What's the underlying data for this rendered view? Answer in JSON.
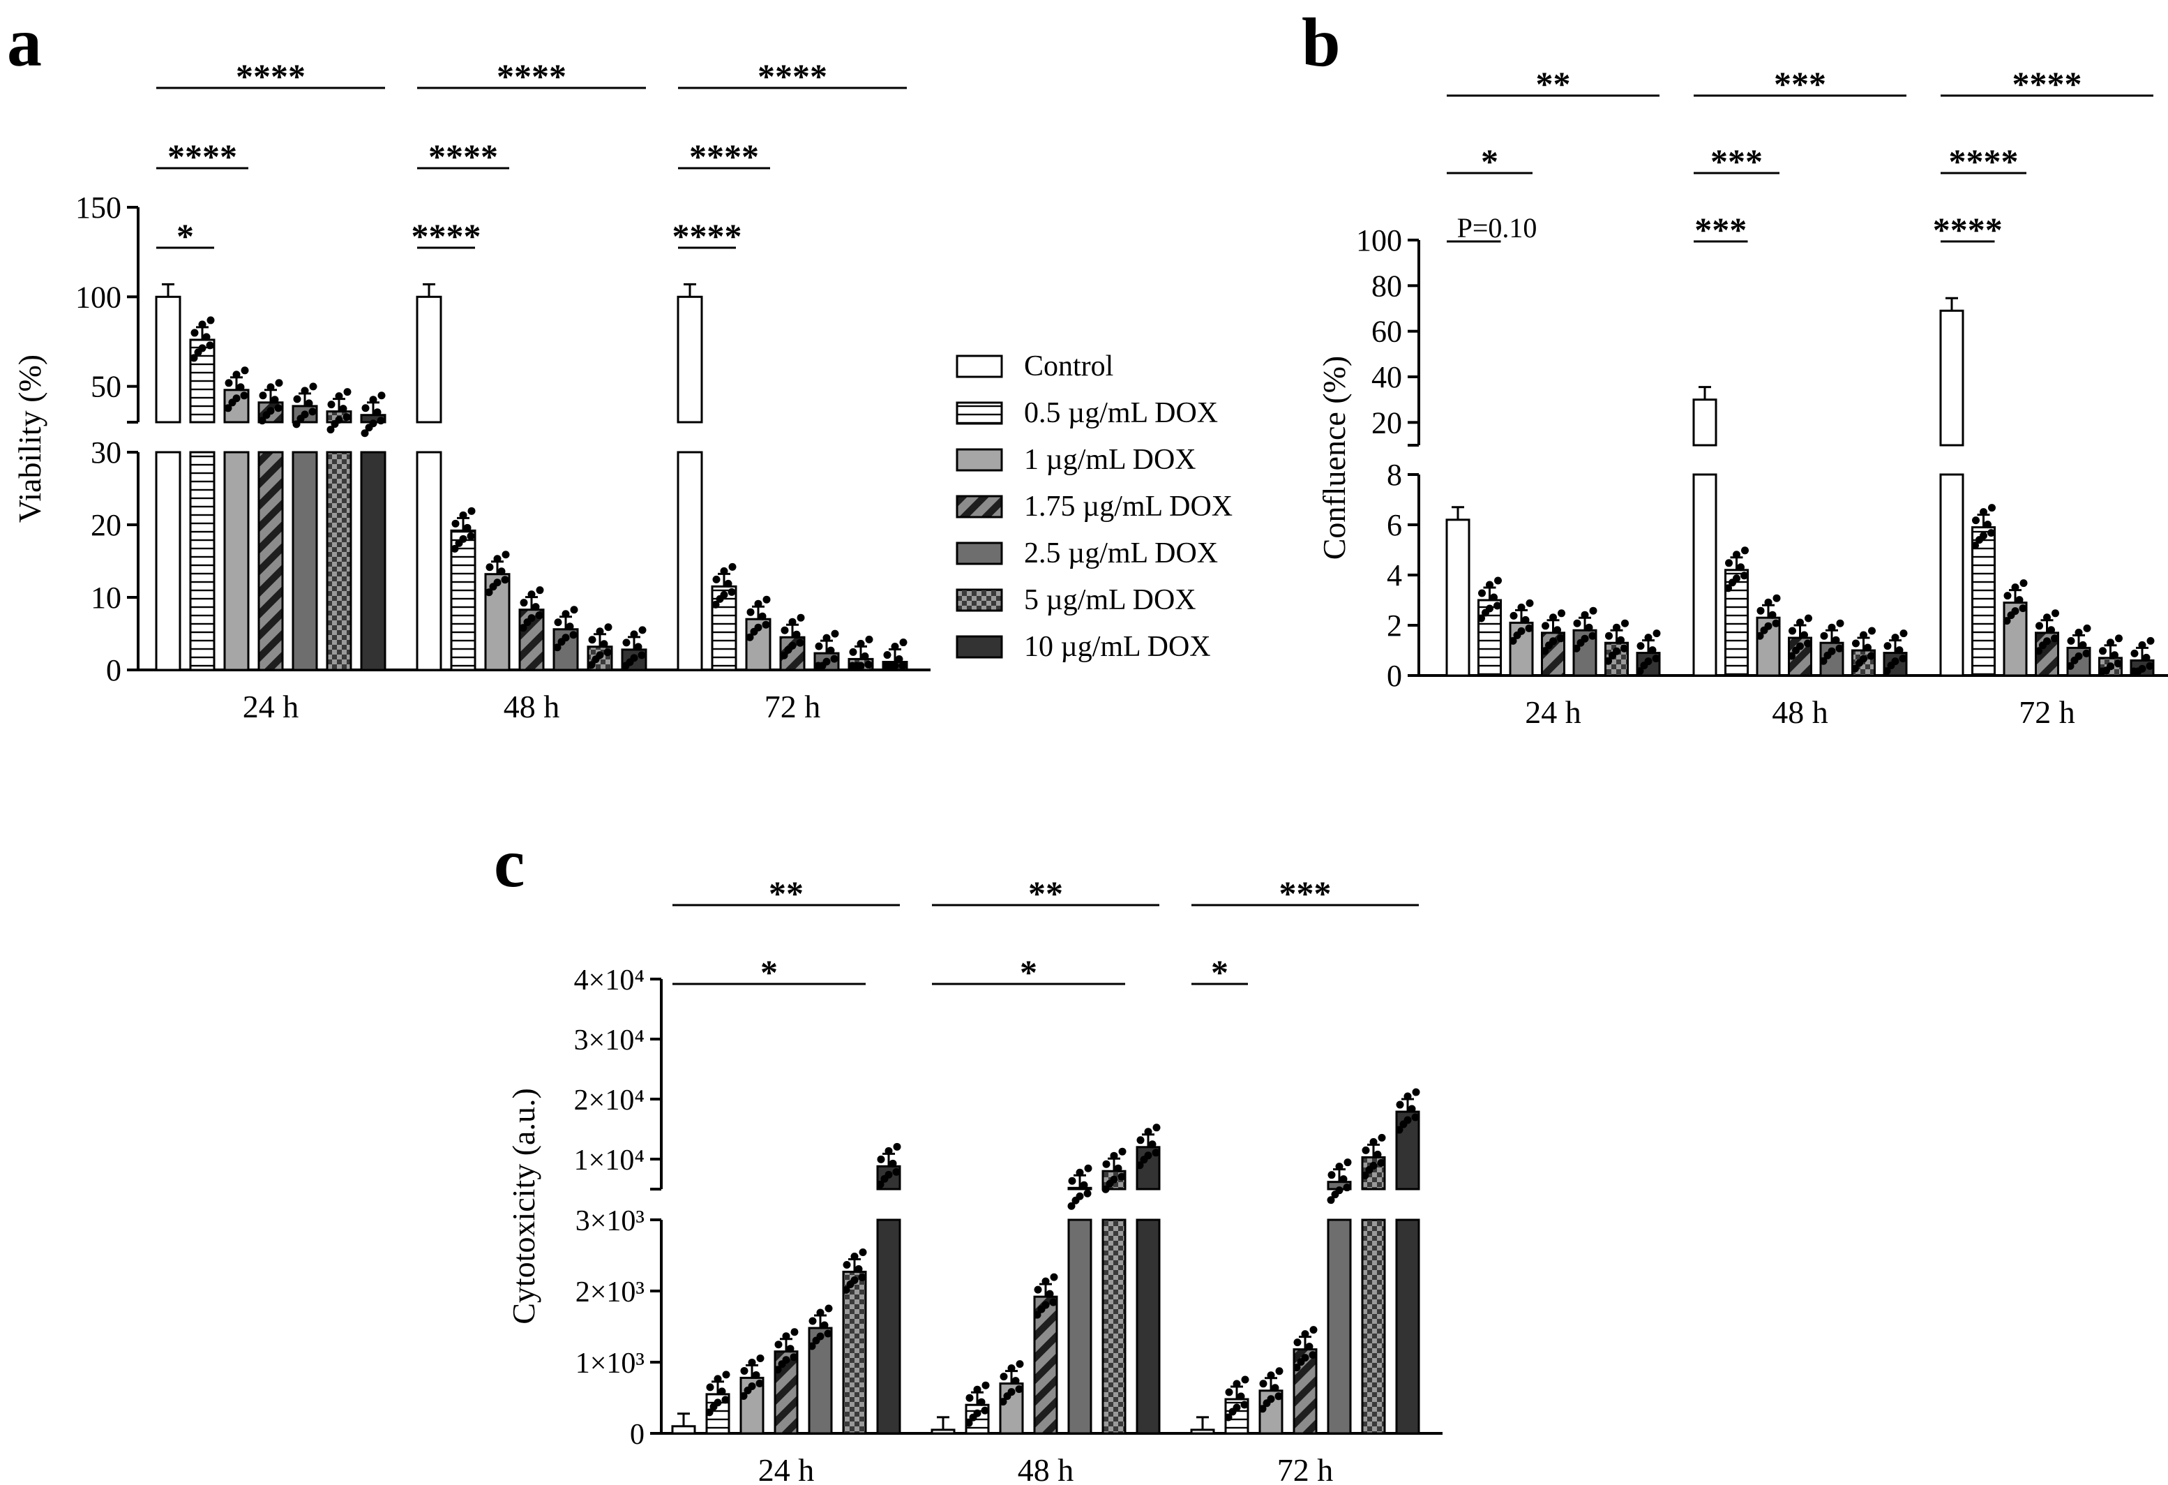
{
  "figure": {
    "legend": {
      "entries": [
        {
          "label": "Control",
          "pattern": "control"
        },
        {
          "label": "0.5 µg/mL DOX",
          "pattern": "hlines"
        },
        {
          "label": "1 µg/mL DOX",
          "pattern": "gray"
        },
        {
          "label": "1.75 µg/mL DOX",
          "pattern": "diag"
        },
        {
          "label": "2.5 µg/mL DOX",
          "pattern": "darkgray"
        },
        {
          "label": "5 µg/mL DOX",
          "pattern": "checker"
        },
        {
          "label": "10 µg/mL DOX",
          "pattern": "black"
        }
      ]
    },
    "colors": {
      "control": "#ffffff",
      "gray": "#a6a6a6",
      "darkgray": "#6e6e6e",
      "black": "#333333",
      "stroke": "#000000"
    }
  },
  "chart_data": [
    {
      "panel": "a",
      "type": "bar",
      "ylabel": "Viability (%)",
      "categories": [
        "24 h",
        "48 h",
        "72 h"
      ],
      "axis_break": {
        "lower": [
          0,
          30
        ],
        "upper": [
          30,
          150
        ]
      },
      "lower_ticks": [
        "0",
        "10",
        "20",
        "30"
      ],
      "upper_ticks": [
        "50",
        "100",
        "150"
      ],
      "series": [
        {
          "name": "Control",
          "values": [
            100,
            100,
            100
          ]
        },
        {
          "name": "0.5 µg/mL DOX",
          "values": [
            76,
            19.2,
            11.5
          ]
        },
        {
          "name": "1 µg/mL DOX",
          "values": [
            48,
            13.2,
            7
          ]
        },
        {
          "name": "1.75 µg/mL DOX",
          "values": [
            41,
            8.3,
            4.5
          ]
        },
        {
          "name": "2.5 µg/mL DOX",
          "values": [
            39,
            5.6,
            2.3
          ]
        },
        {
          "name": "5 µg/mL DOX",
          "values": [
            36,
            3.2,
            1.5
          ]
        },
        {
          "name": "10 µg/mL DOX",
          "values": [
            34,
            2.8,
            1.1
          ]
        }
      ],
      "significance": [
        {
          "group": 0,
          "to": 6,
          "label": "****"
        },
        {
          "group": 0,
          "to": 2,
          "label": "****"
        },
        {
          "group": 0,
          "to": 1,
          "label": "*"
        },
        {
          "group": 1,
          "to": 6,
          "label": "****"
        },
        {
          "group": 1,
          "to": 2,
          "label": "****"
        },
        {
          "group": 1,
          "to": 1,
          "label": "****"
        },
        {
          "group": 2,
          "to": 6,
          "label": "****"
        },
        {
          "group": 2,
          "to": 2,
          "label": "****"
        },
        {
          "group": 2,
          "to": 1,
          "label": "****"
        }
      ]
    },
    {
      "panel": "b",
      "type": "bar",
      "ylabel": "Confluence (%)",
      "categories": [
        "24 h",
        "48 h",
        "72 h"
      ],
      "axis_break": {
        "lower": [
          0,
          8
        ],
        "upper": [
          10,
          100
        ]
      },
      "lower_ticks": [
        "0",
        "2",
        "4",
        "6",
        "8"
      ],
      "upper_ticks": [
        "20",
        "40",
        "60",
        "80",
        "100"
      ],
      "series": [
        {
          "name": "Control",
          "values": [
            6.2,
            30,
            69
          ]
        },
        {
          "name": "0.5 µg/mL DOX",
          "values": [
            3.0,
            4.2,
            5.9
          ]
        },
        {
          "name": "1 µg/mL DOX",
          "values": [
            2.1,
            2.3,
            2.9
          ]
        },
        {
          "name": "1.75 µg/mL DOX",
          "values": [
            1.7,
            1.5,
            1.7
          ]
        },
        {
          "name": "2.5 µg/mL DOX",
          "values": [
            1.8,
            1.3,
            1.1
          ]
        },
        {
          "name": "5 µg/mL DOX",
          "values": [
            1.3,
            1.0,
            0.7
          ]
        },
        {
          "name": "10 µg/mL DOX",
          "values": [
            0.9,
            0.9,
            0.6
          ]
        }
      ],
      "significance": [
        {
          "group": 0,
          "to": 6,
          "label": "**"
        },
        {
          "group": 0,
          "to": 2,
          "label": "*"
        },
        {
          "group": 0,
          "to": 1,
          "label": "P=0.10"
        },
        {
          "group": 1,
          "to": 6,
          "label": "***"
        },
        {
          "group": 1,
          "to": 2,
          "label": "***"
        },
        {
          "group": 1,
          "to": 1,
          "label": "***"
        },
        {
          "group": 2,
          "to": 6,
          "label": "****"
        },
        {
          "group": 2,
          "to": 2,
          "label": "****"
        },
        {
          "group": 2,
          "to": 1,
          "label": "****"
        }
      ]
    },
    {
      "panel": "c",
      "type": "bar",
      "ylabel": "Cytotoxicity (a.u.)",
      "categories": [
        "24 h",
        "48 h",
        "72 h"
      ],
      "axis_break": {
        "lower": [
          0,
          3000
        ],
        "upper": [
          5000,
          40000
        ]
      },
      "lower_ticks": [
        "0",
        "1×10³",
        "2×10³",
        "3×10³"
      ],
      "upper_ticks": [
        "1×10⁴",
        "2×10⁴",
        "3×10⁴",
        "4×10⁴"
      ],
      "series": [
        {
          "name": "Control",
          "values": [
            100,
            50,
            50
          ]
        },
        {
          "name": "0.5 µg/mL DOX",
          "values": [
            550,
            400,
            480
          ]
        },
        {
          "name": "1 µg/mL DOX",
          "values": [
            780,
            700,
            600
          ]
        },
        {
          "name": "1.75 µg/mL DOX",
          "values": [
            1150,
            1920,
            1180
          ]
        },
        {
          "name": "2.5 µg/mL DOX",
          "values": [
            1480,
            5200,
            6200
          ]
        },
        {
          "name": "5 µg/mL DOX",
          "values": [
            2270,
            8000,
            10300
          ]
        },
        {
          "name": "10 µg/mL DOX",
          "values": [
            8800,
            12000,
            17900
          ]
        }
      ],
      "significance": [
        {
          "group": 0,
          "to": 6,
          "label": "**"
        },
        {
          "group": 0,
          "to": 5,
          "label": "*"
        },
        {
          "group": 1,
          "to": 6,
          "label": "**"
        },
        {
          "group": 1,
          "to": 5,
          "label": "*"
        },
        {
          "group": 2,
          "to": 6,
          "label": "***"
        },
        {
          "group": 2,
          "to": 1,
          "label": "*"
        }
      ]
    }
  ]
}
